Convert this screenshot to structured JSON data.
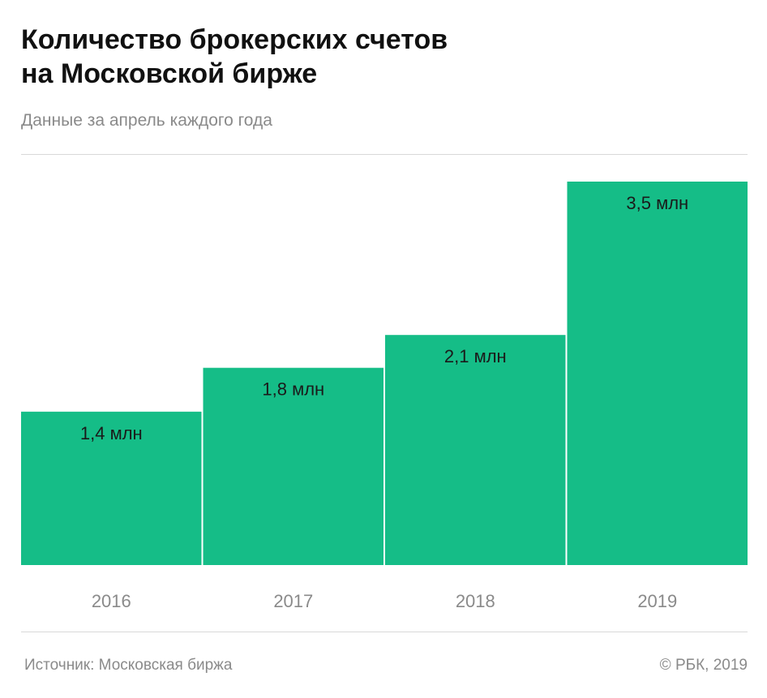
{
  "header": {
    "title_line1": "Количество  брокерских счетов",
    "title_line2": "на Московской бирже",
    "subtitle": "Данные за апрель каждого года"
  },
  "footer": {
    "source": "Источник: Московская биржа",
    "copyright": "© РБК, 2019"
  },
  "colors": {
    "bar": "#15bd87",
    "label": "#1a1a1a",
    "axis_label": "#8a8a8a"
  },
  "chart_data": {
    "type": "bar",
    "title": "Количество  брокерских счетов на Московской бирже",
    "subtitle": "Данные за апрель каждого года",
    "categories": [
      "2016",
      "2017",
      "2018",
      "2019"
    ],
    "values": [
      1.4,
      1.8,
      2.1,
      3.5
    ],
    "value_labels": [
      "1,4 млн",
      "1,8 млн",
      "2,1 млн",
      "3,5 млн"
    ],
    "unit": "млн",
    "xlabel": "",
    "ylabel": "",
    "ylim": [
      0,
      3.5
    ],
    "grid": false,
    "legend": "none"
  }
}
